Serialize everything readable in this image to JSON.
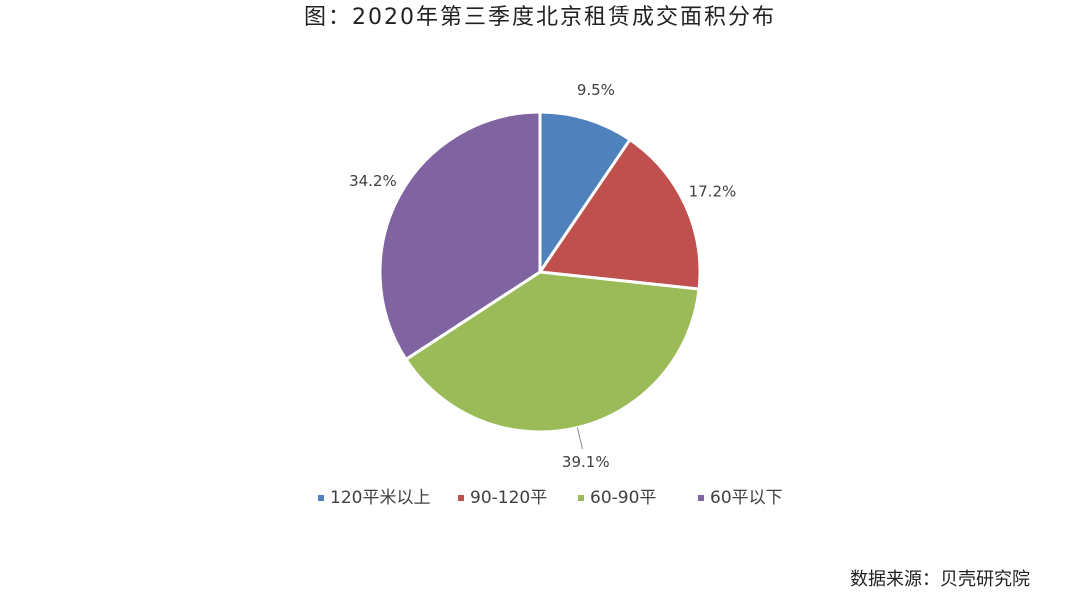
{
  "chart_data": {
    "type": "pie",
    "title": "图：2020年第三季度北京租赁成交面积分布",
    "source": "数据来源：贝壳研究院",
    "categories": [
      "120平米以上",
      "90-120平",
      "60-90平",
      "60平以下"
    ],
    "values": [
      9.5,
      17.2,
      39.1,
      34.2
    ],
    "value_labels": [
      "9.5%",
      "17.2%",
      "39.1%",
      "34.2%"
    ],
    "colors": [
      "#4f81bd",
      "#c0504d",
      "#9bbb59",
      "#8064a2"
    ],
    "legend": "bottom"
  }
}
